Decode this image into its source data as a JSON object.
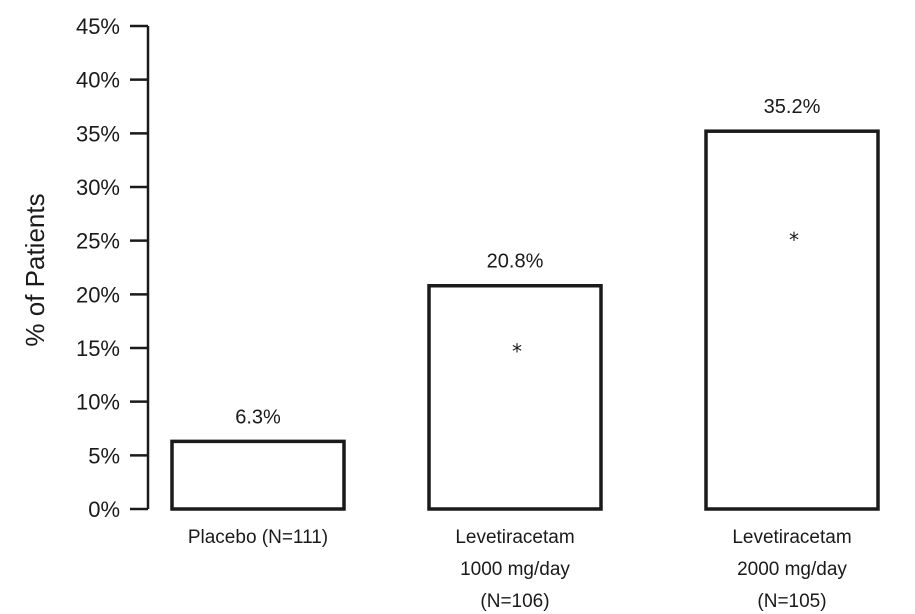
{
  "chart_data": {
    "type": "bar",
    "title": "",
    "xlabel": "",
    "ylabel": "% of Patients",
    "ylim": [
      0,
      45
    ],
    "yticks": [
      0,
      5,
      10,
      15,
      20,
      25,
      30,
      35,
      40,
      45
    ],
    "ytick_labels": [
      "0%",
      "5%",
      "10%",
      "15%",
      "20%",
      "25%",
      "30%",
      "35%",
      "40%",
      "45%"
    ],
    "grid": false,
    "categories": [
      [
        "Placebo (N=111)"
      ],
      [
        "Levetiracetam",
        "1000 mg/day",
        "(N=106)"
      ],
      [
        "Levetiracetam",
        "2000 mg/day",
        "(N=105)"
      ]
    ],
    "values": [
      6.3,
      20.8,
      35.2
    ],
    "data_labels": [
      "6.3%",
      "20.8%",
      "35.2%"
    ],
    "significance_markers": [
      "",
      "*",
      "*"
    ],
    "colors": {
      "bar_fill": "#ffffff",
      "bar_stroke": "#1a1a1a",
      "text": "#1a1a1a"
    }
  }
}
